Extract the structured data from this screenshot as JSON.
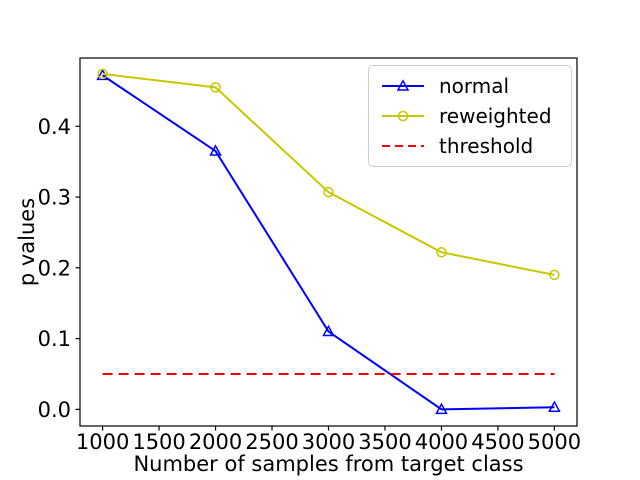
{
  "figure": {
    "background": "#ffffff",
    "frame_color": "#000000",
    "text_color": "#000000"
  },
  "chart_data": {
    "type": "line",
    "title": "",
    "xlabel": "Number of samples from target class",
    "ylabel": "p values",
    "x": [
      1000,
      2000,
      3000,
      4000,
      5000
    ],
    "series": [
      {
        "name": "normal",
        "color": "#0000ff",
        "marker": "triangle",
        "line_style": "solid",
        "values": [
          0.472,
          0.365,
          0.11,
          0.0,
          0.003
        ]
      },
      {
        "name": "reweighted",
        "color": "#c8c800",
        "marker": "circle",
        "line_style": "solid",
        "values": [
          0.474,
          0.455,
          0.307,
          0.222,
          0.19
        ]
      },
      {
        "name": "threshold",
        "color": "#ff0000",
        "marker": "none",
        "line_style": "dashed",
        "values": [
          0.05,
          0.05,
          0.05,
          0.05,
          0.05
        ]
      }
    ],
    "xlim": [
      800,
      5200
    ],
    "ylim": [
      -0.0235,
      0.4965
    ],
    "xticks": {
      "values": [
        1000,
        1500,
        2000,
        2500,
        3000,
        3500,
        4000,
        4500,
        5000
      ],
      "labels": [
        "1000",
        "1500",
        "2000",
        "2500",
        "3000",
        "3500",
        "4000",
        "4500",
        "5000"
      ]
    },
    "yticks": {
      "values": [
        0.0,
        0.1,
        0.2,
        0.3,
        0.4
      ],
      "labels": [
        "0.0",
        "0.1",
        "0.2",
        "0.3",
        "0.4"
      ]
    },
    "legend": {
      "position": "upper right"
    },
    "grid": false
  }
}
